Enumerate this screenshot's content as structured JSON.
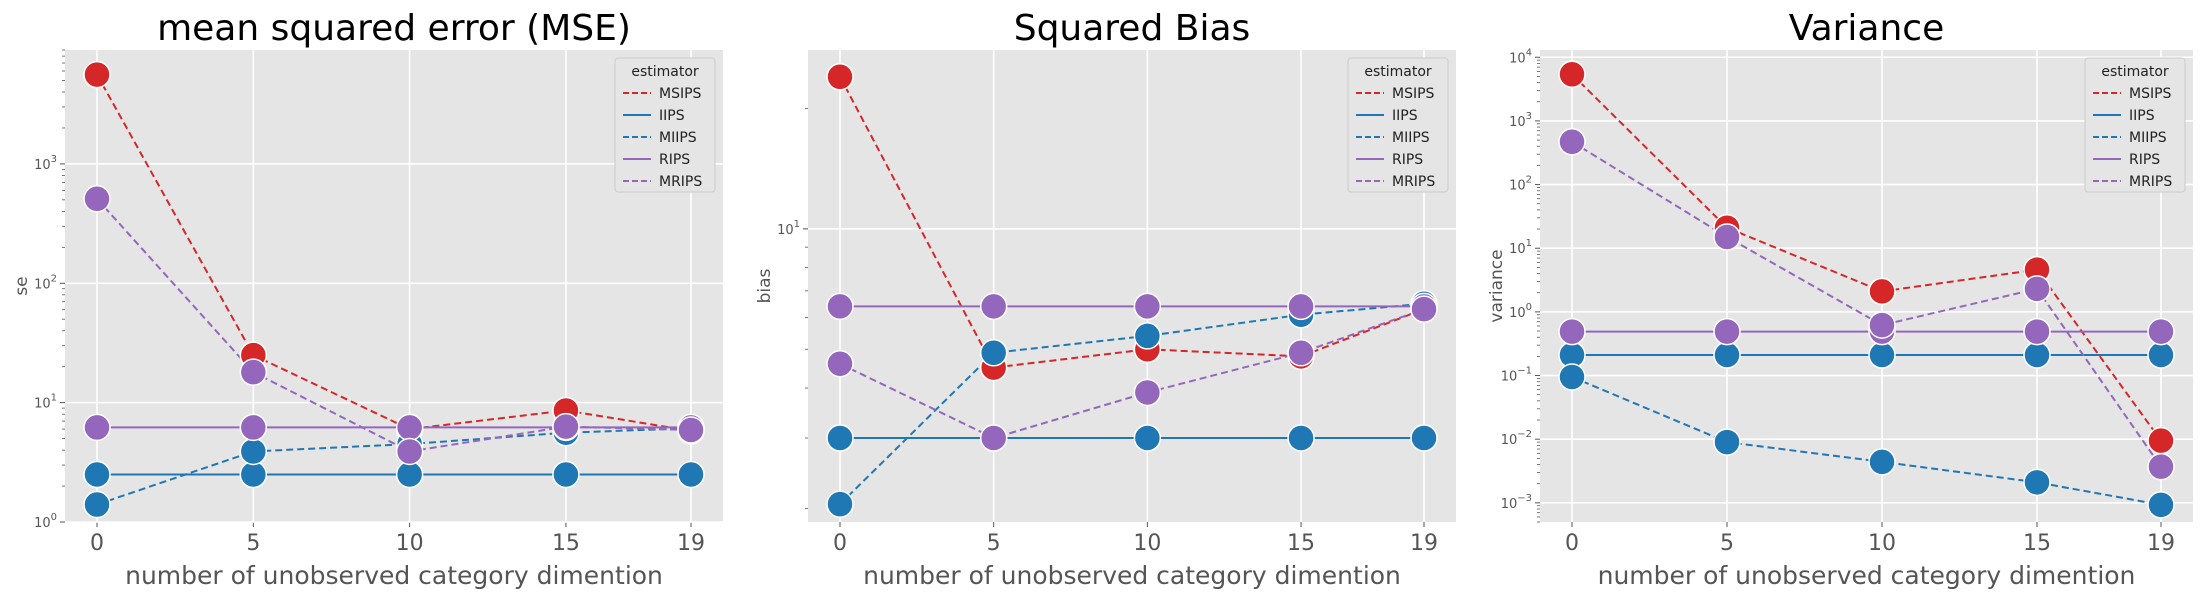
{
  "chart_data": [
    {
      "type": "line",
      "title": "mean squared error (MSE)",
      "xlabel": "number of unobserved category dimention",
      "ylabel": "se",
      "yscale": "log",
      "ylim": [
        1,
        9000
      ],
      "x": [
        0,
        5,
        10,
        15,
        19
      ],
      "xticks": [
        "0",
        "5",
        "10",
        "15",
        "19"
      ],
      "yticks": [
        {
          "value": 1,
          "base": "10",
          "exp": "0"
        },
        {
          "value": 10,
          "base": "10",
          "exp": "1"
        },
        {
          "value": 100,
          "base": "10",
          "exp": "2"
        },
        {
          "value": 1000,
          "base": "10",
          "exp": "3"
        }
      ],
      "grid": true,
      "legend_title": "estimator",
      "legend_position": "top-right",
      "series": [
        {
          "name": "MSIPS",
          "color": "#d62728",
          "dash": "dashed",
          "values": [
            5600,
            25,
            6.0,
            8.6,
            5.8
          ]
        },
        {
          "name": "IIPS",
          "color": "#1f77b4",
          "dash": "solid",
          "values": [
            2.5,
            2.5,
            2.5,
            2.5,
            2.5
          ]
        },
        {
          "name": "MIIPS",
          "color": "#1f77b4",
          "dash": "dashed",
          "values": [
            1.4,
            3.9,
            4.5,
            5.6,
            6.1
          ]
        },
        {
          "name": "RIPS",
          "color": "#9467bd",
          "dash": "solid",
          "values": [
            6.2,
            6.2,
            6.2,
            6.2,
            6.2
          ]
        },
        {
          "name": "MRIPS",
          "color": "#9467bd",
          "dash": "dashed",
          "values": [
            510,
            18,
            3.9,
            6.3,
            5.9
          ]
        }
      ]
    },
    {
      "type": "line",
      "title": "Squared Bias",
      "xlabel": "number of unobserved category dimention",
      "ylabel": "bias",
      "yscale": "log",
      "ylim": [
        1.85,
        28
      ],
      "x": [
        0,
        5,
        10,
        15,
        19
      ],
      "xticks": [
        "0",
        "5",
        "10",
        "15",
        "19"
      ],
      "yticks": [
        {
          "value": 10,
          "base": "10",
          "exp": "1"
        }
      ],
      "grid": true,
      "legend_title": "estimator",
      "legend_position": "top-right",
      "series": [
        {
          "name": "MSIPS",
          "color": "#d62728",
          "dash": "dashed",
          "values": [
            24,
            4.5,
            5.0,
            4.8,
            6.3
          ]
        },
        {
          "name": "IIPS",
          "color": "#1f77b4",
          "dash": "solid",
          "values": [
            3.0,
            3.0,
            3.0,
            3.0,
            3.0
          ]
        },
        {
          "name": "MIIPS",
          "color": "#1f77b4",
          "dash": "dashed",
          "values": [
            2.05,
            4.9,
            5.4,
            6.1,
            6.5
          ]
        },
        {
          "name": "RIPS",
          "color": "#9467bd",
          "dash": "solid",
          "values": [
            6.4,
            6.4,
            6.4,
            6.4,
            6.4
          ]
        },
        {
          "name": "MRIPS",
          "color": "#9467bd",
          "dash": "dashed",
          "values": [
            4.6,
            3.0,
            3.9,
            4.9,
            6.3
          ]
        }
      ]
    },
    {
      "type": "line",
      "title": "Variance",
      "xlabel": "number of unobserved category dimention",
      "ylabel": "variance",
      "yscale": "log",
      "ylim": [
        0.0005,
        13000
      ],
      "x": [
        0,
        5,
        10,
        15,
        19
      ],
      "xticks": [
        "0",
        "5",
        "10",
        "15",
        "19"
      ],
      "yticks": [
        {
          "value": 0.001,
          "base": "10",
          "exp": "−3"
        },
        {
          "value": 0.01,
          "base": "10",
          "exp": "−2"
        },
        {
          "value": 0.1,
          "base": "10",
          "exp": "−1"
        },
        {
          "value": 1,
          "base": "10",
          "exp": "0"
        },
        {
          "value": 10,
          "base": "10",
          "exp": "1"
        },
        {
          "value": 100,
          "base": "10",
          "exp": "2"
        },
        {
          "value": 1000,
          "base": "10",
          "exp": "3"
        },
        {
          "value": 10000,
          "base": "10",
          "exp": "4"
        }
      ],
      "grid": true,
      "legend_title": "estimator",
      "legend_position": "top-right",
      "series": [
        {
          "name": "MSIPS",
          "color": "#d62728",
          "dash": "dashed",
          "values": [
            5400,
            21,
            2.1,
            4.6,
            0.0095
          ]
        },
        {
          "name": "IIPS",
          "color": "#1f77b4",
          "dash": "solid",
          "values": [
            0.21,
            0.21,
            0.21,
            0.21,
            0.21
          ]
        },
        {
          "name": "MIIPS",
          "color": "#1f77b4",
          "dash": "dashed",
          "values": [
            0.095,
            0.009,
            0.0044,
            0.0021,
            0.00093
          ]
        },
        {
          "name": "RIPS",
          "color": "#9467bd",
          "dash": "solid",
          "values": [
            0.49,
            0.49,
            0.49,
            0.49,
            0.49
          ]
        },
        {
          "name": "MRIPS",
          "color": "#9467bd",
          "dash": "dashed",
          "values": [
            470,
            15,
            0.62,
            2.3,
            0.0037
          ]
        }
      ]
    }
  ]
}
